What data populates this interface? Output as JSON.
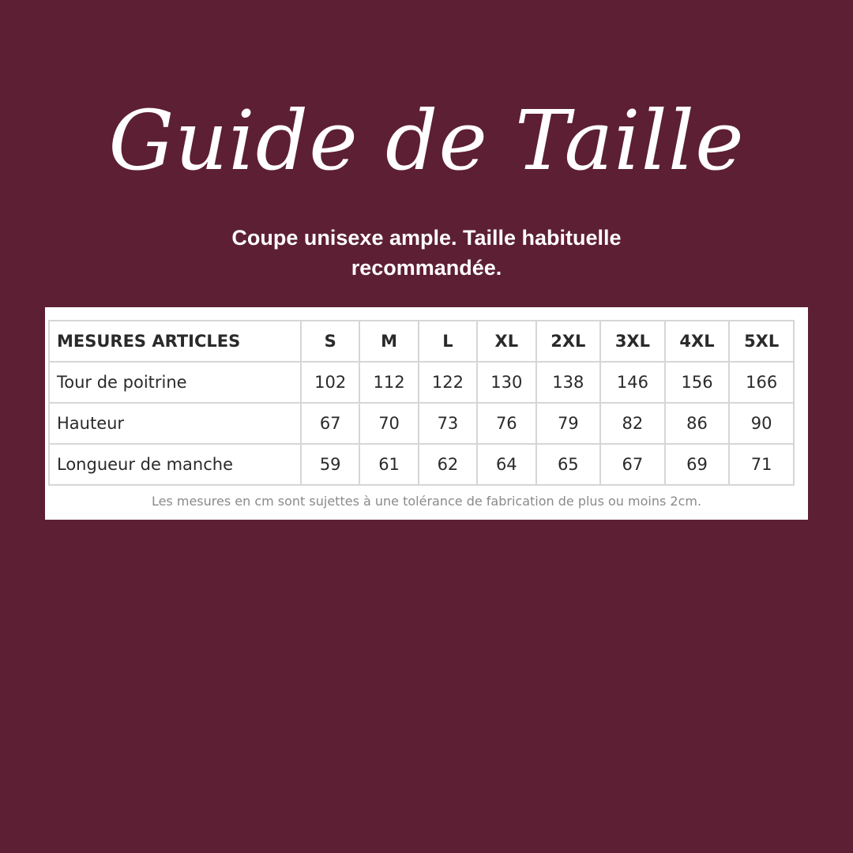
{
  "title": "Guide de Taille",
  "subtitle": "Coupe unisexe ample. Taille habituelle recommandée.",
  "table": {
    "header_label": "MESURES ARTICLES",
    "sizes": [
      "S",
      "M",
      "L",
      "XL",
      "2XL",
      "3XL",
      "4XL",
      "5XL"
    ],
    "rows": [
      {
        "label": "Tour de poitrine",
        "values": [
          "102",
          "112",
          "122",
          "130",
          "138",
          "146",
          "156",
          "166"
        ]
      },
      {
        "label": "Hauteur",
        "values": [
          "67",
          "70",
          "73",
          "76",
          "79",
          "82",
          "86",
          "90"
        ]
      },
      {
        "label": "Longueur de manche",
        "values": [
          "59",
          "61",
          "62",
          "64",
          "65",
          "67",
          "69",
          "71"
        ]
      }
    ],
    "note": "Les mesures en cm sont sujettes à une tolérance de fabrication de plus ou moins 2cm."
  },
  "colors": {
    "background": "#5d1f33",
    "text": "#ffffff"
  }
}
